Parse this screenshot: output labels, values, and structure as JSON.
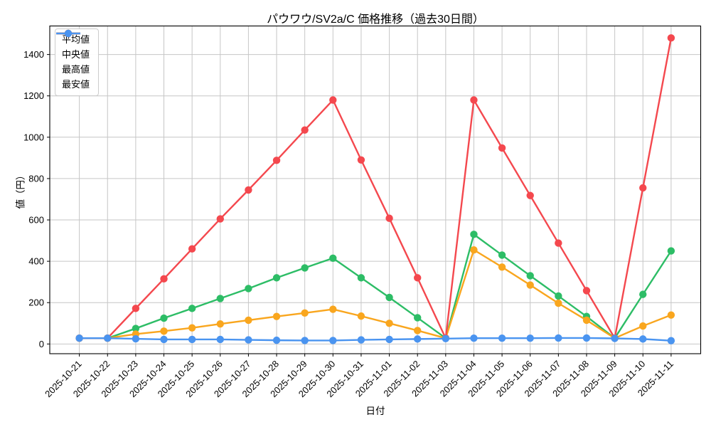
{
  "chart_data": {
    "type": "line",
    "title": "パウワウ/SV2a/C 価格推移（過去30日間）",
    "xlabel": "日付",
    "ylabel": "値（円）",
    "grid": true,
    "legend_position": "upper-left",
    "x": [
      "2025-10-21",
      "2025-10-22",
      "2025-10-23",
      "2025-10-24",
      "2025-10-25",
      "2025-10-26",
      "2025-10-27",
      "2025-10-28",
      "2025-10-29",
      "2025-10-30",
      "2025-10-31",
      "2025-11-01",
      "2025-11-02",
      "2025-11-03",
      "2025-11-04",
      "2025-11-05",
      "2025-11-06",
      "2025-11-07",
      "2025-11-08",
      "2025-11-09",
      "2025-11-10",
      "2025-11-11"
    ],
    "yticks": [
      0,
      200,
      400,
      600,
      800,
      1000,
      1200,
      1400
    ],
    "ylim": [
      -47,
      1538
    ],
    "series": [
      {
        "key": "avg",
        "name": "平均値",
        "color": "#2dbd66",
        "values": [
          28,
          28,
          75,
          125,
          172,
          220,
          268,
          320,
          368,
          415,
          320,
          225,
          127,
          28,
          530,
          430,
          330,
          232,
          133,
          28,
          240,
          450
        ]
      },
      {
        "key": "median",
        "name": "中央値",
        "color": "#f9a61e",
        "values": [
          28,
          28,
          48,
          62,
          78,
          97,
          115,
          133,
          150,
          168,
          135,
          100,
          65,
          28,
          455,
          372,
          285,
          197,
          115,
          28,
          87,
          140
        ]
      },
      {
        "key": "max",
        "name": "最高値",
        "color": "#f4484e",
        "values": [
          28,
          28,
          172,
          315,
          460,
          605,
          745,
          888,
          1035,
          1180,
          890,
          608,
          320,
          28,
          1180,
          948,
          718,
          488,
          258,
          28,
          755,
          1480
        ]
      },
      {
        "key": "min",
        "name": "最安値",
        "color": "#4a94f0",
        "values": [
          28,
          28,
          25,
          22,
          22,
          22,
          20,
          18,
          17,
          17,
          20,
          22,
          24,
          26,
          28,
          28,
          28,
          29,
          29,
          27,
          24,
          16
        ]
      }
    ]
  }
}
